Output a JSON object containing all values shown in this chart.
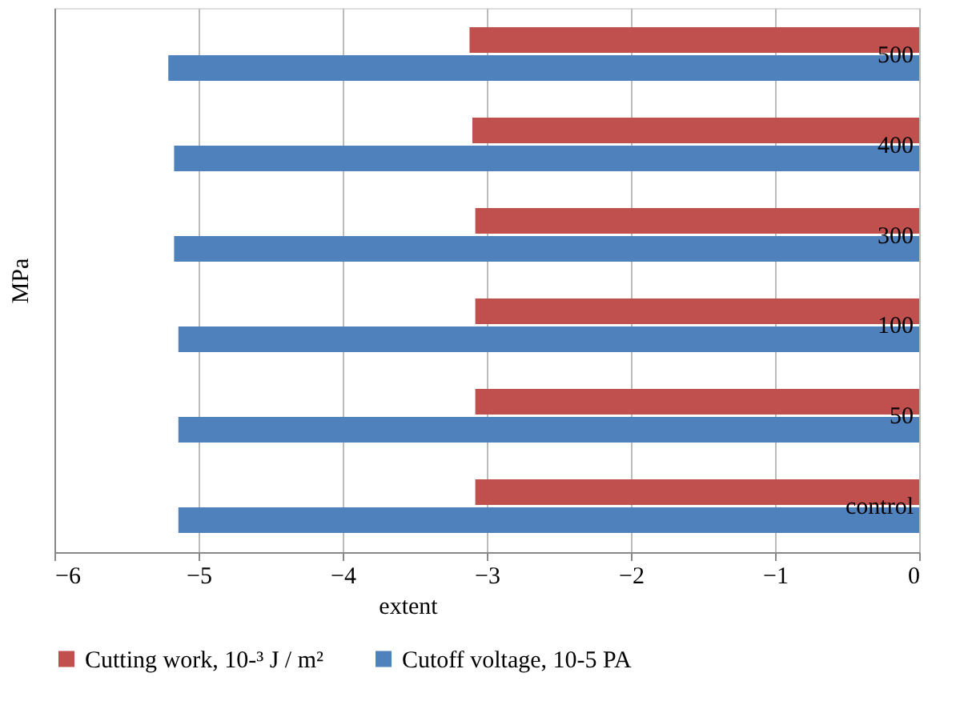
{
  "chart_data": {
    "type": "bar",
    "orientation": "horizontal",
    "xlabel": "extent",
    "ylabel": "MPa",
    "categories": [
      "500",
      "400",
      "300",
      "100",
      "50",
      "control"
    ],
    "series": [
      {
        "name": "Cutting work, 10-³ J / m²",
        "color": "#c0504d",
        "values": [
          -3.12,
          -3.1,
          -3.08,
          -3.08,
          -3.08,
          -3.08
        ]
      },
      {
        "name": "Cutoff voltage, 10-5 PA",
        "color": "#4f81bd",
        "values": [
          -5.21,
          -5.17,
          -5.17,
          -5.14,
          -5.14,
          -5.14
        ]
      }
    ],
    "xlim": [
      -6,
      0
    ],
    "xticks": [
      -6,
      -5,
      -4,
      -3,
      -2,
      -1,
      0
    ],
    "grid": "x",
    "legend": "bottom"
  }
}
